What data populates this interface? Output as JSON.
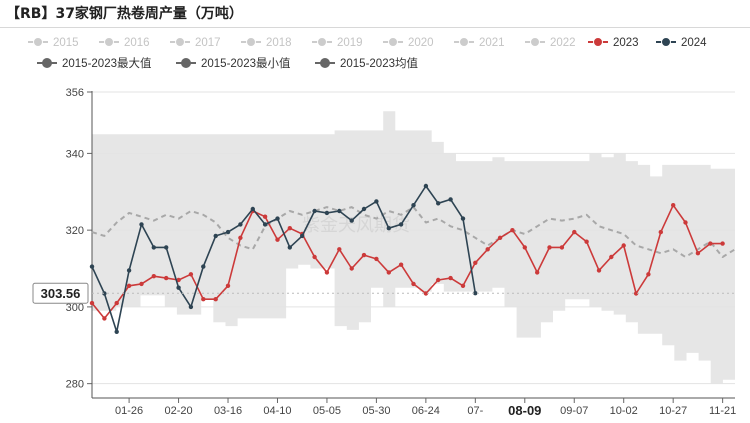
{
  "header": {
    "title": "【RB】37家钢厂热卷周产量（万吨）"
  },
  "watermark": "紫金天风期货",
  "chart_data": {
    "type": "line",
    "title": "【RB】37家钢厂热卷周产量（万吨）",
    "ylim": [
      276,
      356
    ],
    "y_ticks": [
      280,
      300,
      320,
      340,
      356
    ],
    "x_range": [
      0,
      52
    ],
    "x_ticks": [
      {
        "x": 3,
        "label": "01-26"
      },
      {
        "x": 7,
        "label": "02-20"
      },
      {
        "x": 11,
        "label": "03-16"
      },
      {
        "x": 15,
        "label": "04-10"
      },
      {
        "x": 19,
        "label": "05-05"
      },
      {
        "x": 23,
        "label": "05-30"
      },
      {
        "x": 27,
        "label": "06-24"
      },
      {
        "x": 31,
        "label": "07-"
      },
      {
        "x": 35,
        "label": "08-09",
        "highlight": true
      },
      {
        "x": 39,
        "label": "09-07"
      },
      {
        "x": 43,
        "label": "10-02"
      },
      {
        "x": 47,
        "label": "10-27"
      },
      {
        "x": 51,
        "label": "11-21"
      }
    ],
    "y_pointer": {
      "value": 303.56,
      "label": "303.56"
    },
    "legend": {
      "row1": [
        {
          "name": "2015",
          "color": "#cccccc",
          "inactive": true
        },
        {
          "name": "2016",
          "color": "#cccccc",
          "inactive": true
        },
        {
          "name": "2017",
          "color": "#cccccc",
          "inactive": true
        },
        {
          "name": "2018",
          "color": "#cccccc",
          "inactive": true
        },
        {
          "name": "2019",
          "color": "#cccccc",
          "inactive": true
        },
        {
          "name": "2020",
          "color": "#cccccc",
          "inactive": true
        },
        {
          "name": "2021",
          "color": "#cccccc",
          "inactive": true
        },
        {
          "name": "2022",
          "color": "#cccccc",
          "inactive": true
        },
        {
          "name": "2023",
          "color": "#cc3a3a",
          "inactive": false
        },
        {
          "name": "2024",
          "color": "#2e4453",
          "inactive": false
        }
      ],
      "row2": [
        {
          "name": "2015-2023最大值",
          "color": "#666666",
          "inactive": false
        },
        {
          "name": "2015-2023最小值",
          "color": "#666666",
          "inactive": false
        },
        {
          "name": "2015-2023均值",
          "color": "#666666",
          "inactive": false
        }
      ]
    },
    "band_max": [
      345,
      345,
      345,
      345,
      345,
      345,
      345,
      345,
      345,
      345,
      345,
      345,
      345,
      345,
      345,
      345,
      345,
      345,
      345,
      345,
      346,
      346,
      346,
      346,
      351,
      346,
      346,
      346,
      343,
      340,
      338,
      338,
      338,
      339,
      338,
      338,
      338,
      338,
      338,
      338,
      338,
      340,
      339,
      340,
      338,
      337,
      334,
      337,
      337,
      337,
      337,
      336,
      336
    ],
    "band_min": [
      299,
      299,
      300,
      300,
      303,
      303,
      300,
      298,
      298,
      302,
      296,
      295,
      297,
      297,
      297,
      297,
      310,
      311,
      310,
      310,
      295,
      294,
      296,
      305,
      300,
      305,
      305,
      304,
      306,
      304,
      304,
      304,
      304,
      305,
      300,
      292,
      292,
      296,
      299,
      302,
      302,
      300,
      299,
      298,
      296,
      293,
      293,
      290,
      286,
      288,
      286,
      280,
      281
    ],
    "series": [
      {
        "name": "2015-2023均值",
        "color": "#a8a8a8",
        "style": "dashed",
        "values": [
          319.5,
          318.5,
          322,
          324.5,
          323.5,
          322.5,
          324,
          323,
          325,
          324,
          322,
          318,
          316,
          315,
          321,
          323,
          325,
          324,
          325,
          326,
          325,
          326,
          324,
          323,
          325,
          324,
          326,
          322,
          323,
          321,
          320,
          318,
          316,
          318,
          320,
          319,
          321,
          323,
          322.5,
          323,
          324,
          321,
          320,
          319,
          316,
          315,
          314,
          315,
          313,
          315,
          317,
          313,
          315
        ]
      },
      {
        "name": "2023",
        "color": "#cc3a3a",
        "style": "solid",
        "values": [
          301,
          297,
          301,
          305.5,
          306,
          308,
          307.5,
          307,
          308.5,
          302,
          302,
          305.5,
          318,
          325,
          323.5,
          317.5,
          320.5,
          319,
          313,
          309,
          315,
          310,
          313.5,
          312.5,
          309,
          311,
          306,
          303.5,
          307,
          307.5,
          305.5,
          311.5,
          315,
          318,
          320,
          315.5,
          309,
          315.5,
          315.5,
          319.5,
          317,
          309.5,
          313,
          316,
          303.5,
          308.5,
          319.5,
          326.5,
          322,
          314,
          316.5,
          316.5
        ]
      },
      {
        "name": "2024",
        "color": "#2e4453",
        "style": "solid",
        "values": [
          310.5,
          303.5,
          293.5,
          309.5,
          321.5,
          315.5,
          315.5,
          305,
          300,
          310.5,
          318.5,
          319.5,
          321.5,
          325.5,
          321.5,
          323,
          315.5,
          318.5,
          325,
          324.5,
          325,
          322.5,
          325.5,
          327.5,
          320.5,
          321.5,
          326.5,
          331.5,
          327,
          328,
          323,
          303.56
        ]
      }
    ]
  }
}
